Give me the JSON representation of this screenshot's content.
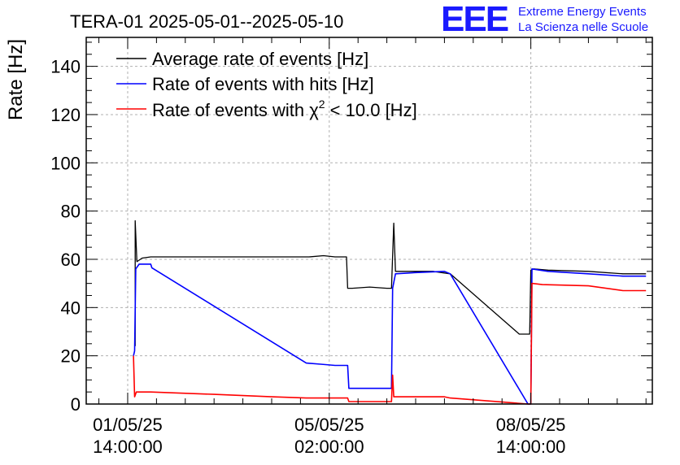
{
  "chart_data": {
    "type": "line",
    "title": "TERA-01 2025-05-01--2025-05-10",
    "xlabel": "",
    "ylabel": "Rate [Hz]",
    "ylim": [
      0,
      152
    ],
    "xlim_days": [
      -0.72,
      9.11
    ],
    "grid": true,
    "legend_placement": "top-left",
    "x_ticks": [
      {
        "label_date": "01/05/25",
        "label_time": "14:00:00",
        "day": 0
      },
      {
        "label_date": "05/05/25",
        "label_time": "02:00:00",
        "day": 3.5
      },
      {
        "label_date": "08/05/25",
        "label_time": "14:00:00",
        "day": 7
      }
    ],
    "y_ticks": [
      0,
      20,
      40,
      60,
      80,
      100,
      120,
      140
    ],
    "series": [
      {
        "name": "Average rate of events [Hz]",
        "color": "#000000",
        "points": [
          [
            0.13,
            24
          ],
          [
            0.13,
            76
          ],
          [
            0.16,
            59
          ],
          [
            0.25,
            60.5
          ],
          [
            0.4,
            61
          ],
          [
            1.5,
            61
          ],
          [
            2.5,
            61
          ],
          [
            3.15,
            61
          ],
          [
            3.4,
            61.5
          ],
          [
            3.6,
            61
          ],
          [
            3.8,
            61
          ],
          [
            3.82,
            48
          ],
          [
            3.9,
            48
          ],
          [
            4.2,
            48.5
          ],
          [
            4.5,
            48
          ],
          [
            4.58,
            48
          ],
          [
            4.62,
            75
          ],
          [
            4.65,
            55
          ],
          [
            4.8,
            55
          ],
          [
            5.3,
            55
          ],
          [
            5.6,
            54
          ],
          [
            6.8,
            29
          ],
          [
            6.98,
            29
          ],
          [
            7.0,
            55.5
          ],
          [
            7.05,
            56
          ],
          [
            7.3,
            55.5
          ],
          [
            8.0,
            55
          ],
          [
            8.6,
            54
          ],
          [
            9.0,
            54
          ]
        ]
      },
      {
        "name": "Rate of events with hits [Hz]",
        "color": "#0000ff",
        "points": [
          [
            0.1,
            20
          ],
          [
            0.12,
            22
          ],
          [
            0.14,
            56
          ],
          [
            0.2,
            58
          ],
          [
            0.4,
            58
          ],
          [
            0.42,
            56.5
          ],
          [
            3.1,
            17
          ],
          [
            3.35,
            16.5
          ],
          [
            3.6,
            16
          ],
          [
            3.82,
            16
          ],
          [
            3.84,
            6.5
          ],
          [
            4.2,
            6.5
          ],
          [
            4.58,
            6.5
          ],
          [
            4.6,
            48
          ],
          [
            4.65,
            54
          ],
          [
            5.0,
            54.5
          ],
          [
            5.5,
            55
          ],
          [
            5.6,
            54
          ],
          [
            6.95,
            0
          ],
          [
            7.0,
            0
          ],
          [
            7.02,
            56
          ],
          [
            7.3,
            55
          ],
          [
            8.0,
            54
          ],
          [
            8.6,
            53
          ],
          [
            9.0,
            53
          ]
        ]
      },
      {
        "name": "Rate of events with χ² < 10.0 [Hz]",
        "color": "#ff0000",
        "points": [
          [
            0.1,
            20
          ],
          [
            0.12,
            3
          ],
          [
            0.15,
            5
          ],
          [
            0.4,
            5
          ],
          [
            1.5,
            4
          ],
          [
            2.5,
            3
          ],
          [
            3.1,
            2.5
          ],
          [
            3.82,
            2.5
          ],
          [
            3.84,
            1
          ],
          [
            4.2,
            1
          ],
          [
            4.58,
            1
          ],
          [
            4.6,
            12
          ],
          [
            4.62,
            3
          ],
          [
            5.0,
            3
          ],
          [
            5.5,
            3
          ],
          [
            5.6,
            2.5
          ],
          [
            6.95,
            0
          ],
          [
            7.0,
            0
          ],
          [
            7.02,
            50
          ],
          [
            7.2,
            49.5
          ],
          [
            8.0,
            49
          ],
          [
            8.6,
            47
          ],
          [
            9.0,
            47
          ]
        ]
      }
    ]
  },
  "legend": {
    "items": [
      {
        "pre": "Average rate of events [Hz]",
        "sup": "",
        "post": ""
      },
      {
        "pre": "Rate of events with hits [Hz]",
        "sup": "",
        "post": ""
      },
      {
        "pre": "Rate of events with χ",
        "sup": "2",
        "post": " < 10.0 [Hz]"
      }
    ]
  },
  "logo": {
    "mark": "EEE",
    "line1": "Extreme Energy Events",
    "line2": "La Scienza nelle Scuole",
    "color": "#1a1aff"
  }
}
